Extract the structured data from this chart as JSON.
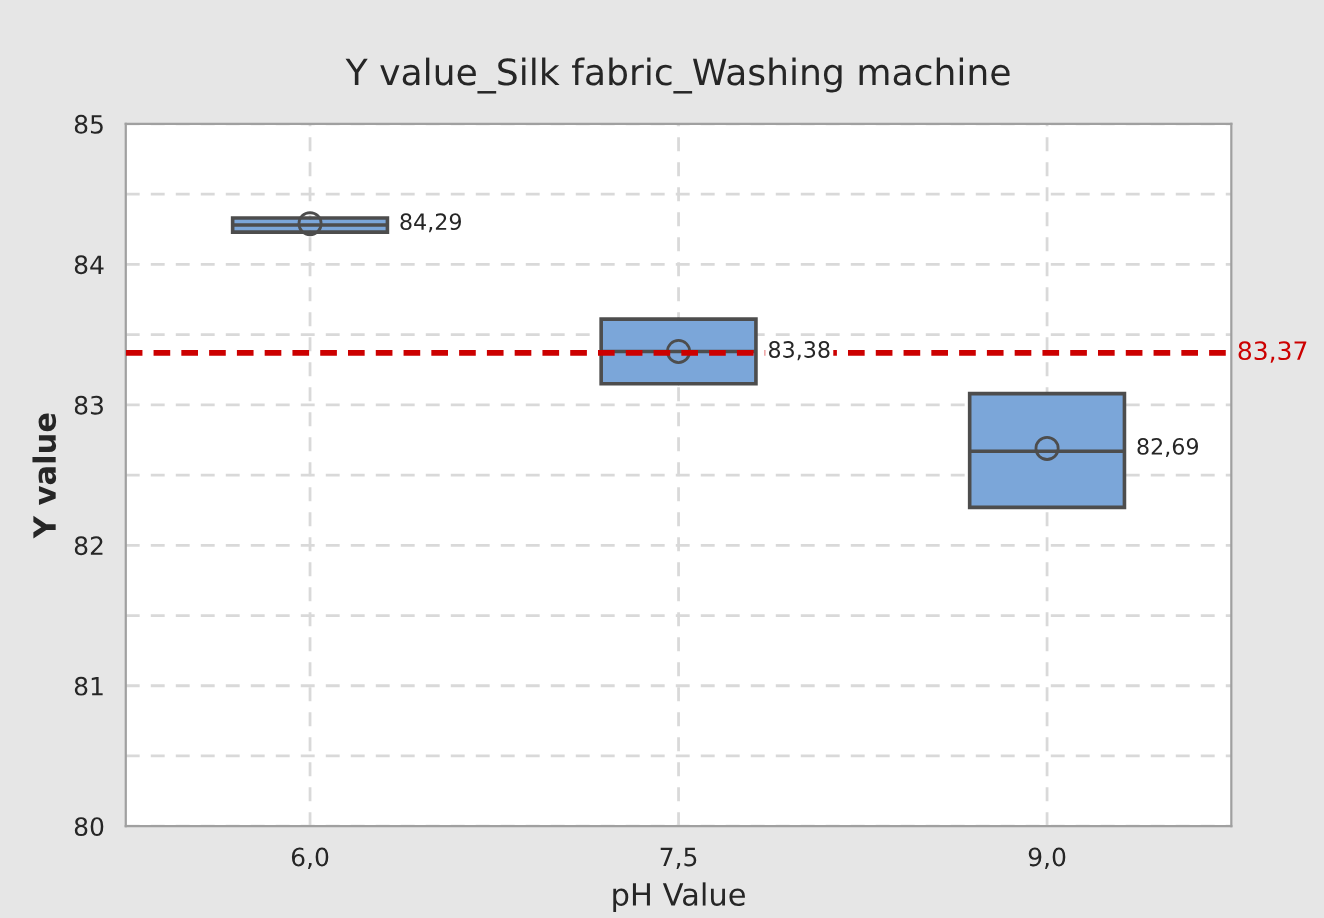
{
  "chart_data": {
    "type": "box",
    "title": "Y value_Silk fabric_Washing machine",
    "xlabel": "pH Value",
    "ylabel": "Y value",
    "categories": [
      "6,0",
      "7,5",
      "9,0"
    ],
    "series": [
      {
        "color": "#7ba6d9",
        "boxes": [
          {
            "low": 84.23,
            "q1": 84.23,
            "median": 84.28,
            "q3": 84.33,
            "high": 84.33,
            "mean": 84.29
          },
          {
            "low": 83.15,
            "q1": 83.15,
            "median": 83.38,
            "q3": 83.61,
            "high": 83.61,
            "mean": 83.38
          },
          {
            "low": 82.27,
            "q1": 82.27,
            "median": 82.67,
            "q3": 83.08,
            "high": 83.08,
            "mean": 82.69
          }
        ]
      }
    ],
    "annotations": [
      "84,29",
      "83,38",
      "82,69"
    ],
    "ref_lines": [
      {
        "axis": "y",
        "value": 83.37,
        "label": "83,37",
        "color": "#cc0000",
        "line_style": "dashed"
      }
    ],
    "ylim": [
      80,
      85
    ],
    "yticks": [
      80,
      {
        "value": 80.5,
        "label": null
      },
      81,
      {
        "value": 81.5,
        "label": null
      },
      82,
      {
        "value": 82.5,
        "label": null
      },
      83,
      {
        "value": 83.5,
        "label": null
      },
      84,
      {
        "value": 84.5,
        "label": null
      },
      85
    ],
    "grid": true
  }
}
